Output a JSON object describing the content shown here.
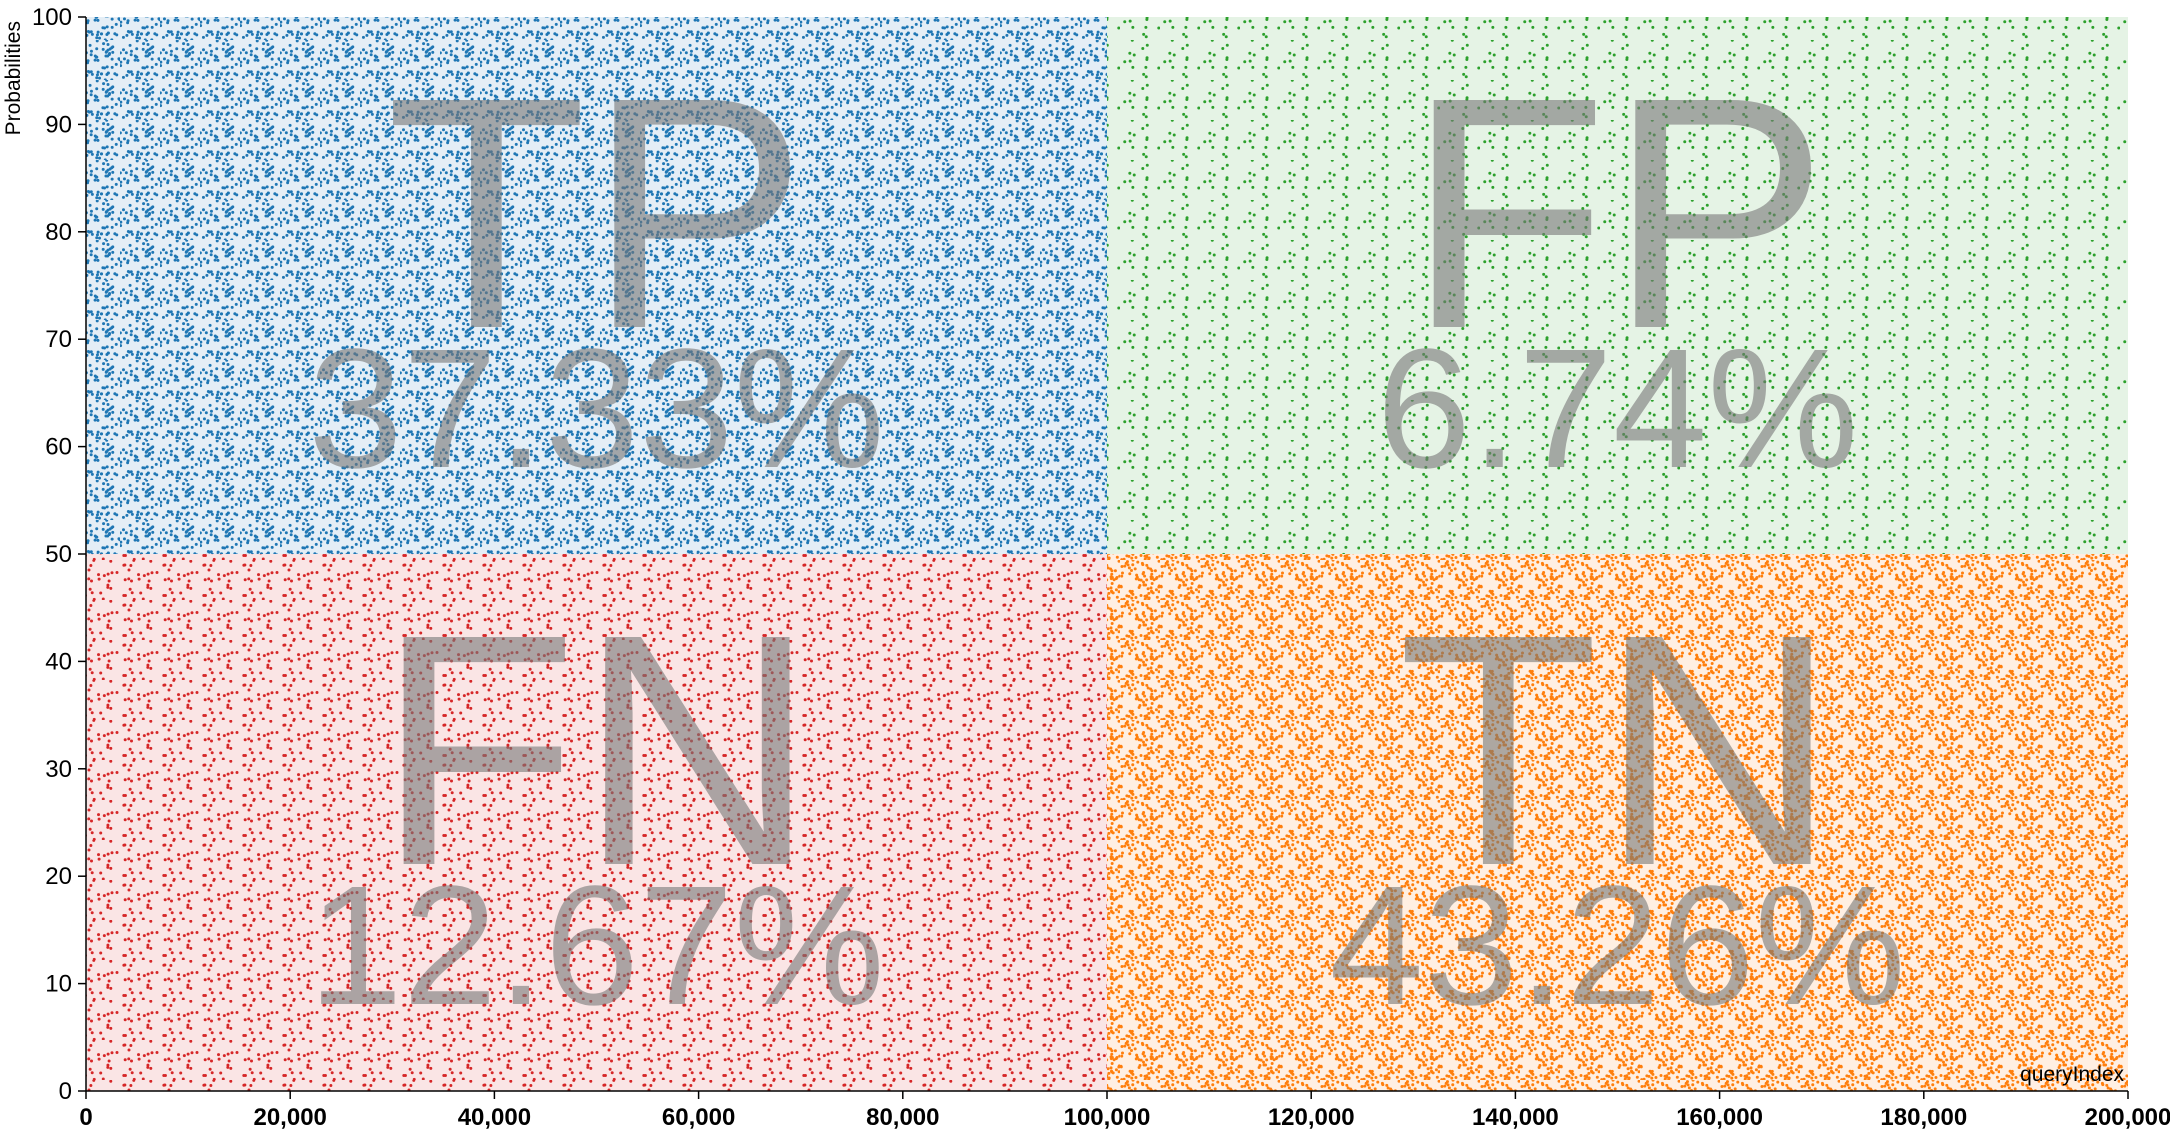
{
  "chart_data": {
    "type": "scatter",
    "x_label": "queryIndex",
    "y_label": "Probabilities",
    "xlim": [
      0,
      200000
    ],
    "ylim": [
      0,
      100
    ],
    "xticks": [
      0,
      {
        "value": 20000,
        "label": "20,000"
      },
      {
        "value": 40000,
        "label": "40,000"
      },
      {
        "value": 60000,
        "label": "60,000"
      },
      {
        "value": 80000,
        "label": "80,000"
      },
      {
        "value": 100000,
        "label": "100,000"
      },
      {
        "value": 120000,
        "label": "120,000"
      },
      {
        "value": 140000,
        "label": "140,000"
      },
      {
        "value": 160000,
        "label": "160,000"
      },
      {
        "value": 180000,
        "label": "180,000"
      },
      {
        "value": 200000,
        "label": "200,000"
      }
    ],
    "yticks": [
      0,
      10,
      20,
      30,
      40,
      50,
      60,
      70,
      80,
      90,
      100
    ],
    "quadrants": {
      "categories": [
        "TP",
        "FP",
        "FN",
        "TN"
      ],
      "values": [
        37.33,
        6.74,
        12.67,
        43.26
      ],
      "value_labels": [
        "37.33%",
        "6.74%",
        "12.67%",
        "43.26%"
      ],
      "colors": [
        "#1f77b4",
        "#2ca02c",
        "#d62728",
        "#ff7f0e"
      ]
    }
  }
}
